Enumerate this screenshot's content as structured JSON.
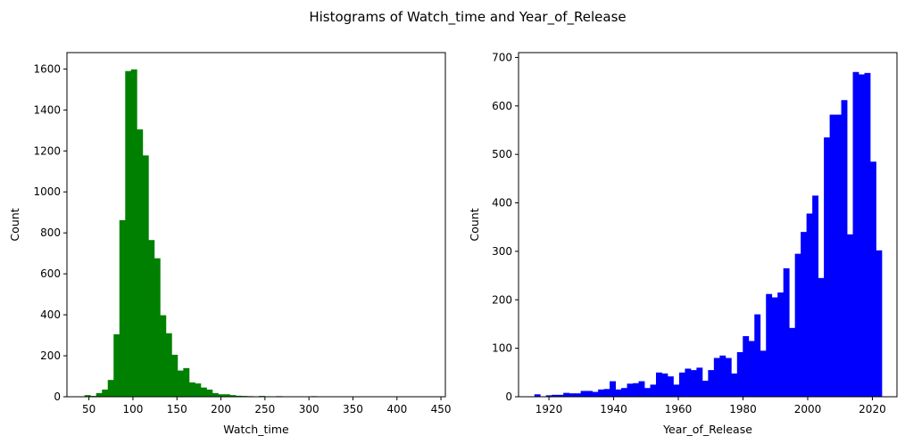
{
  "figure": {
    "title": "Histograms of Watch_time and Year_of_Release"
  },
  "chart_data": [
    {
      "type": "bar",
      "subtype": "histogram",
      "color": "#008000",
      "xlabel": "Watch_time",
      "ylabel": "Count",
      "xlim": [
        25,
        455
      ],
      "ylim": [
        0,
        1680
      ],
      "xticks": [
        50,
        100,
        150,
        200,
        250,
        300,
        350,
        400,
        450
      ],
      "yticks": [
        0,
        200,
        400,
        600,
        800,
        1000,
        1200,
        1400,
        1600
      ],
      "grid": false,
      "bin_edges_start": 45,
      "bin_width": 6.6,
      "values": [
        8,
        4,
        18,
        35,
        82,
        305,
        862,
        1590,
        1598,
        1305,
        1178,
        765,
        676,
        398,
        310,
        205,
        128,
        140,
        70,
        65,
        45,
        35,
        18,
        12,
        12,
        8,
        5,
        4,
        3,
        2,
        4,
        2,
        1,
        3,
        2,
        1,
        1,
        1,
        2,
        3,
        2,
        1,
        0,
        1,
        1,
        2,
        1,
        0,
        1,
        0,
        1,
        0,
        1,
        0,
        0,
        0,
        0,
        0,
        1,
        1
      ]
    },
    {
      "type": "bar",
      "subtype": "histogram",
      "color": "#0000ff",
      "xlabel": "Year_of_Release",
      "ylabel": "Count",
      "xlim": [
        1910.6,
        2027.6
      ],
      "ylim": [
        0,
        710
      ],
      "xticks": [
        1920,
        1940,
        1960,
        1980,
        2000,
        2020
      ],
      "yticks": [
        0,
        100,
        200,
        300,
        400,
        500,
        600,
        700
      ],
      "grid": false,
      "bin_edges_start": 1915.5,
      "bin_width": 1.79,
      "values": [
        5,
        0,
        3,
        4,
        4,
        8,
        7,
        7,
        12,
        12,
        10,
        15,
        16,
        32,
        15,
        18,
        27,
        28,
        32,
        18,
        25,
        50,
        48,
        42,
        25,
        50,
        58,
        55,
        60,
        33,
        55,
        80,
        85,
        80,
        48,
        92,
        125,
        115,
        170,
        95,
        212,
        205,
        215,
        265,
        142,
        295,
        340,
        378,
        415,
        245,
        535,
        582,
        582,
        612,
        335,
        670,
        665,
        668,
        485,
        302
      ]
    }
  ]
}
